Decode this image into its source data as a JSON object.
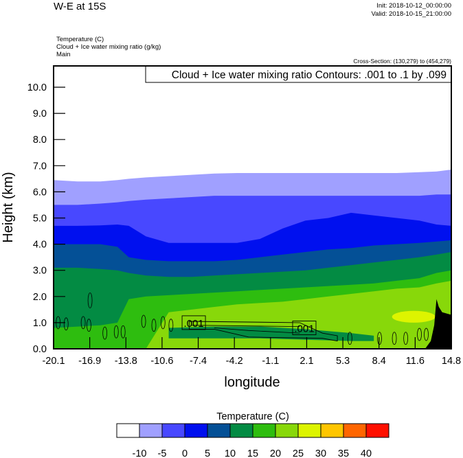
{
  "header": {
    "title": "W-E at 15S",
    "init": "Init: 2018-10-12_00:00:00",
    "valid": "Valid: 2018-10-15_21:00:00",
    "field1": "Temperature   (C)",
    "field2": "Cloud + Ice water mixing ratio   (g/kg)",
    "field3": "Main",
    "cross_section": "Cross-Section: (130,279) to (454,279)"
  },
  "chart_data": {
    "type": "heatmap",
    "title": "",
    "contour_legend": "Cloud + Ice water mixing ratio Contours: .001 to .1 by .099",
    "xlabel": "longitude",
    "ylabel": "Height (km)",
    "xlim": [
      -20.1,
      14.8
    ],
    "ylim": [
      0,
      10.8
    ],
    "x_ticks": [
      "-20.1",
      "-16.9",
      "-13.8",
      "-10.6",
      "-7.4",
      "-4.2",
      "-1.1",
      "2.1",
      "5.3",
      "8.4",
      "11.6",
      "14.8"
    ],
    "y_ticks": [
      "0.0",
      "1.0",
      "2.0",
      "3.0",
      "4.0",
      "5.0",
      "6.0",
      "7.0",
      "8.0",
      "9.0",
      "10.0"
    ],
    "colorbar": {
      "title": "Temperature  (C)",
      "levels": [
        "-10",
        "-5",
        "0",
        "5",
        "10",
        "15",
        "20",
        "25",
        "30",
        "35",
        "40"
      ],
      "colors": [
        "#ffffff",
        "#a0a0ff",
        "#4848ff",
        "#0010ef",
        "#045096",
        "#038b43",
        "#2ebd0f",
        "#88d80a",
        "#ddf400",
        "#ffc600",
        "#ff6600",
        "#ff1000"
      ]
    },
    "lon": [
      -20.1,
      -18,
      -16,
      -14.5,
      -13.5,
      -12,
      -10,
      -8,
      -6,
      -4,
      -2,
      0,
      2,
      4,
      6,
      8,
      10,
      12,
      13.5,
      14.8
    ],
    "isotherms_km": [
      {
        "level": -10,
        "color": "#a0a0ff",
        "h": [
          6.45,
          6.4,
          6.4,
          6.45,
          6.5,
          6.55,
          6.6,
          6.65,
          6.7,
          6.72,
          6.72,
          6.72,
          6.72,
          6.72,
          6.72,
          6.72,
          6.72,
          6.75,
          6.78,
          6.85
        ]
      },
      {
        "level": -5,
        "color": "#4848ff",
        "h": [
          5.5,
          5.5,
          5.55,
          5.6,
          5.65,
          5.7,
          5.75,
          5.8,
          5.85,
          5.85,
          5.85,
          5.85,
          5.85,
          5.85,
          5.85,
          5.85,
          5.85,
          5.85,
          5.9,
          5.9
        ]
      },
      {
        "level": 0,
        "color": "#0010ef",
        "h": [
          4.7,
          4.7,
          4.72,
          4.75,
          4.7,
          4.3,
          4.05,
          4.05,
          4.05,
          4.05,
          4.2,
          4.6,
          4.9,
          5.0,
          5.2,
          5.1,
          5.0,
          4.9,
          4.75,
          4.7
        ]
      },
      {
        "level": 5,
        "color": "#045096",
        "h": [
          4.0,
          4.0,
          4.0,
          3.9,
          3.5,
          3.4,
          3.35,
          3.35,
          3.35,
          3.4,
          3.5,
          3.6,
          3.7,
          3.8,
          3.85,
          3.95,
          4.0,
          4.05,
          4.1,
          4.15
        ]
      },
      {
        "level": 10,
        "color": "#038b43",
        "h": [
          3.1,
          3.1,
          3.05,
          3.0,
          2.9,
          2.8,
          2.75,
          2.75,
          2.8,
          2.85,
          2.9,
          2.95,
          3.0,
          3.1,
          3.2,
          3.3,
          3.4,
          3.5,
          3.6,
          3.7
        ]
      },
      {
        "level": 15,
        "color": "#2ebd0f",
        "h": [
          0.8,
          0.85,
          0.9,
          1.0,
          1.9,
          2.0,
          2.05,
          2.1,
          2.15,
          2.2,
          2.25,
          2.3,
          2.35,
          2.4,
          2.45,
          2.5,
          2.6,
          2.7,
          2.9,
          3.0
        ]
      },
      {
        "level": 20,
        "color": "#88d80a",
        "h": [
          0,
          0,
          0,
          0,
          0,
          0,
          1.4,
          1.5,
          1.6,
          1.7,
          1.75,
          1.8,
          1.9,
          2.0,
          2.1,
          2.2,
          2.3,
          2.35,
          2.5,
          2.6
        ]
      }
    ],
    "near_surface_10_15_layer": {
      "lon": [
        -10,
        -6,
        -2,
        2,
        6,
        8
      ],
      "top": [
        0.8,
        0.85,
        0.85,
        0.75,
        0.6,
        0.5
      ],
      "bottom": [
        0.4,
        0.4,
        0.4,
        0.35,
        0.3,
        0.3
      ]
    },
    "warm_25_30_region": {
      "lon_range": [
        9.6,
        13.4
      ],
      "height_range": [
        1.0,
        1.45
      ]
    },
    "terrain_km": {
      "lon": [
        12.5,
        13.0,
        13.3,
        13.5,
        13.7,
        14.0,
        14.4,
        14.8
      ],
      "h": [
        0,
        0.3,
        0.9,
        1.9,
        1.6,
        1.4,
        1.35,
        1.3
      ]
    },
    "cloud_contour_level": ".001",
    "cloud_contour_labels": [
      {
        "lon": -7.8,
        "h": 1.0,
        "text": ".001"
      },
      {
        "lon": 1.9,
        "h": 0.8,
        "text": ".001"
      }
    ],
    "cloud_cells": [
      {
        "lon": -19.7,
        "h": 1.0
      },
      {
        "lon": -19.0,
        "h": 0.95
      },
      {
        "lon": -17.5,
        "h": 1.0
      },
      {
        "lon": -17.0,
        "h": 0.9
      },
      {
        "lon": -16.9,
        "h": 1.85
      },
      {
        "lon": -15.6,
        "h": 0.6
      },
      {
        "lon": -14.6,
        "h": 0.65
      },
      {
        "lon": -14.0,
        "h": 0.65
      },
      {
        "lon": -12.2,
        "h": 1.05
      },
      {
        "lon": -11.3,
        "h": 0.9
      },
      {
        "lon": -10.5,
        "h": 1.0
      },
      {
        "lon": -9.8,
        "h": 0.9
      },
      {
        "lon": 5.9,
        "h": 0.4
      },
      {
        "lon": 8.5,
        "h": 0.4
      },
      {
        "lon": 9.8,
        "h": 0.4
      },
      {
        "lon": 10.8,
        "h": 0.4
      },
      {
        "lon": 12.0,
        "h": 0.55
      },
      {
        "lon": 12.6,
        "h": 0.55
      }
    ]
  }
}
